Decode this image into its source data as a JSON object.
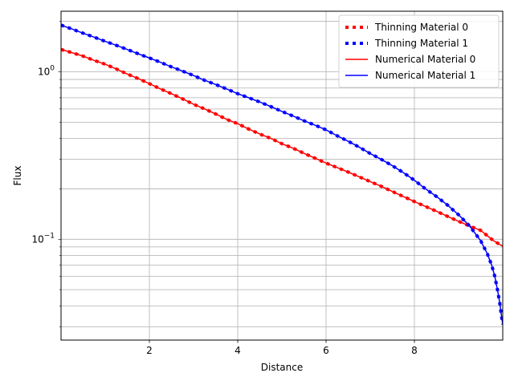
{
  "chart_data": {
    "type": "line",
    "title": "",
    "xlabel": "Distance",
    "ylabel": "Flux",
    "xlim": [
      0,
      10
    ],
    "ylim": [
      0.025,
      2.3
    ],
    "yscale": "log",
    "grid": true,
    "legend_position": "top-right",
    "x_ticks": [
      2,
      4,
      6,
      8
    ],
    "x_tick_labels": [
      "2",
      "4",
      "6",
      "8"
    ],
    "y_major_ticks": [
      0.1,
      1
    ],
    "y_tick_labels": [
      "10^{-1}",
      "10^{0}"
    ],
    "x_dense": [
      0.0,
      0.25,
      0.5,
      0.75,
      1.0,
      1.25,
      1.5,
      1.75,
      2.0,
      2.25,
      2.5,
      2.75,
      3.0,
      3.25,
      3.5,
      3.75,
      4.0,
      4.25,
      4.5,
      4.75,
      5.0,
      5.25,
      5.5,
      5.75,
      6.0,
      6.25,
      6.5,
      6.75,
      7.0,
      7.25,
      7.5,
      7.75,
      8.0,
      8.25,
      8.5,
      8.75,
      9.0,
      9.25,
      9.5,
      9.65,
      9.75,
      9.82,
      9.88,
      9.93,
      9.97,
      10.0
    ],
    "series": [
      {
        "name": "Thinning Material 0",
        "style": "dotted",
        "color": "#ff0000",
        "values": [
          1.36,
          1.3,
          1.24,
          1.17,
          1.11,
          1.04,
          0.97,
          0.91,
          0.85,
          0.79,
          0.74,
          0.69,
          0.64,
          0.6,
          0.56,
          0.52,
          0.49,
          0.455,
          0.425,
          0.4,
          0.372,
          0.35,
          0.326,
          0.305,
          0.285,
          0.268,
          0.252,
          0.236,
          0.221,
          0.207,
          0.193,
          0.18,
          0.168,
          0.157,
          0.147,
          0.137,
          0.128,
          0.12,
          0.113,
          0.105,
          0.1,
          0.097,
          0.095,
          0.093,
          0.092,
          0.091
        ]
      },
      {
        "name": "Thinning Material 1",
        "style": "dotted",
        "color": "#0000ff",
        "values": [
          1.9,
          1.8,
          1.7,
          1.61,
          1.52,
          1.44,
          1.36,
          1.28,
          1.21,
          1.14,
          1.07,
          1.01,
          0.95,
          0.89,
          0.84,
          0.79,
          0.74,
          0.7,
          0.66,
          0.62,
          0.58,
          0.545,
          0.51,
          0.48,
          0.45,
          0.415,
          0.385,
          0.355,
          0.325,
          0.3,
          0.275,
          0.25,
          0.225,
          0.2,
          0.18,
          0.16,
          0.14,
          0.12,
          0.098,
          0.082,
          0.07,
          0.06,
          0.05,
          0.042,
          0.035,
          0.031
        ]
      },
      {
        "name": "Numerical Material 0",
        "style": "solid",
        "color": "#ff0000",
        "values": [
          1.36,
          1.3,
          1.24,
          1.17,
          1.11,
          1.04,
          0.97,
          0.91,
          0.85,
          0.79,
          0.74,
          0.69,
          0.64,
          0.6,
          0.56,
          0.52,
          0.49,
          0.455,
          0.425,
          0.4,
          0.372,
          0.35,
          0.326,
          0.305,
          0.285,
          0.268,
          0.252,
          0.236,
          0.221,
          0.207,
          0.193,
          0.18,
          0.168,
          0.157,
          0.147,
          0.137,
          0.128,
          0.12,
          0.113,
          0.105,
          0.1,
          0.097,
          0.095,
          0.093,
          0.092,
          0.091
        ]
      },
      {
        "name": "Numerical Material 1",
        "style": "solid",
        "color": "#0000ff",
        "values": [
          1.9,
          1.8,
          1.7,
          1.61,
          1.52,
          1.44,
          1.36,
          1.28,
          1.21,
          1.14,
          1.07,
          1.01,
          0.95,
          0.89,
          0.84,
          0.79,
          0.74,
          0.7,
          0.66,
          0.62,
          0.58,
          0.545,
          0.51,
          0.48,
          0.45,
          0.415,
          0.385,
          0.355,
          0.325,
          0.3,
          0.275,
          0.25,
          0.225,
          0.2,
          0.18,
          0.16,
          0.14,
          0.12,
          0.098,
          0.082,
          0.07,
          0.06,
          0.05,
          0.042,
          0.035,
          0.031
        ]
      }
    ]
  }
}
